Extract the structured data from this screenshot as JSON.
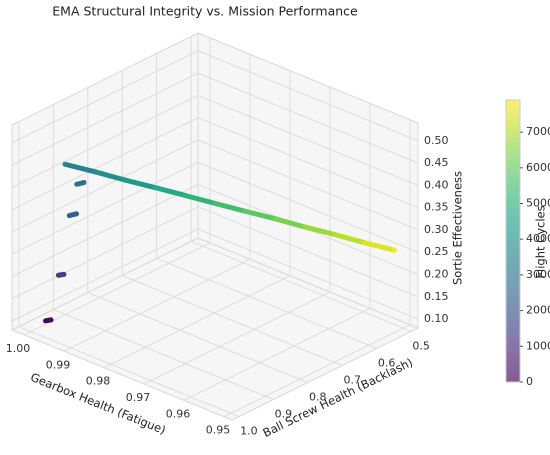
{
  "chart_data": {
    "type": "scatter3d",
    "title": "EMA Structural Integrity vs. Mission Performance",
    "x_label": "Gearbox Health (Fatigue)",
    "y_label": "Ball Screw Health (Backlash)",
    "z_label": "Sortie Effectiveness",
    "colorbar_label": "Flight Cycles",
    "colormap": "viridis",
    "grid": true,
    "x": [
      0.9985,
      0.998,
      0.997,
      0.9965,
      0.996,
      0.9955,
      0.995,
      0.9945,
      0.995,
      0.991,
      0.987,
      0.983,
      0.979,
      0.975,
      0.971,
      0.967,
      0.963,
      0.959,
      0.955,
      0.951
    ],
    "y": [
      0.975,
      0.965,
      0.955,
      0.945,
      0.935,
      0.92,
      0.925,
      0.91,
      0.959,
      0.918,
      0.878,
      0.837,
      0.797,
      0.756,
      0.716,
      0.675,
      0.635,
      0.594,
      0.554,
      0.513
    ],
    "z": [
      0.1,
      0.1,
      0.2,
      0.2,
      0.33,
      0.33,
      0.4,
      0.4,
      0.458,
      0.44,
      0.421,
      0.403,
      0.385,
      0.366,
      0.348,
      0.33,
      0.311,
      0.293,
      0.274,
      0.256
    ],
    "color_values": [
      100,
      250,
      1400,
      1550,
      2300,
      2450,
      2900,
      3050,
      3500,
      3900,
      4300,
      4700,
      5100,
      5500,
      5900,
      6300,
      6700,
      7100,
      7500,
      7900
    ],
    "xlim": [
      0.948,
      1.003
    ],
    "ylim": [
      0.48,
      1.02
    ],
    "zlim": [
      0.08,
      0.54
    ],
    "clim": [
      0,
      7900
    ],
    "xticks": [
      {
        "value": 1.0,
        "label": "1.00"
      },
      0.99,
      0.98,
      0.97,
      0.96,
      0.95
    ],
    "yticks": [
      {
        "value": 1.0,
        "label": "1.0"
      },
      0.9,
      0.8,
      0.7,
      0.6,
      0.5
    ],
    "zticks": [
      {
        "value": 0.1,
        "label": "0.10"
      },
      0.15,
      {
        "value": 0.2,
        "label": "0.20"
      },
      0.25,
      {
        "value": 0.3,
        "label": "0.30"
      },
      0.35,
      {
        "value": 0.4,
        "label": "0.40"
      },
      0.45,
      {
        "value": 0.5,
        "label": "0.50"
      }
    ],
    "cticks": [
      0,
      1000,
      2000,
      3000,
      4000,
      5000,
      6000,
      7000
    ]
  }
}
